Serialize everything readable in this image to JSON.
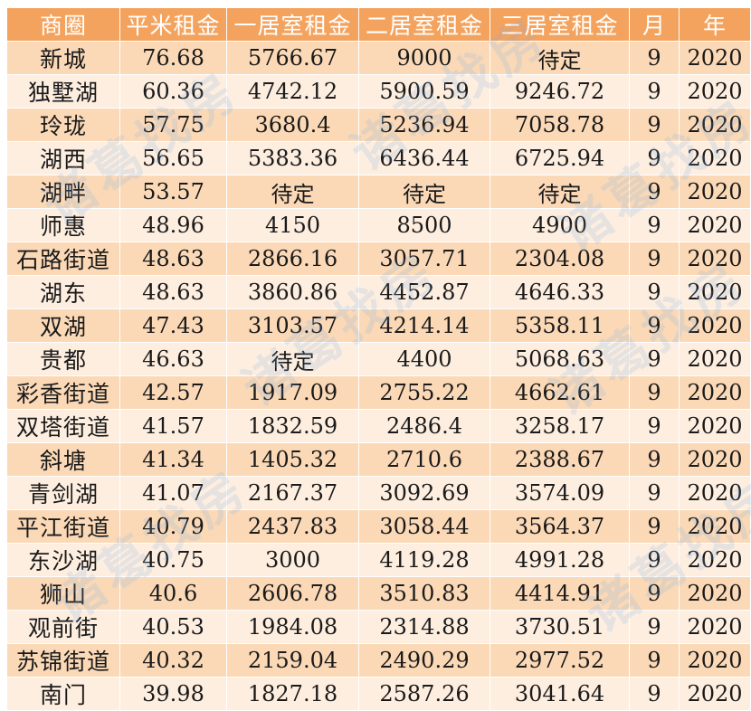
{
  "headers": [
    "商圈",
    "平米租金",
    "一居室租金",
    "二居室租金",
    "三居室租金",
    "月",
    "年"
  ],
  "rows": [
    [
      "新城",
      "76.68",
      "5766.67",
      "9000",
      "待定",
      "9",
      "2020"
    ],
    [
      "独墅湖",
      "60.36",
      "4742.12",
      "5900.59",
      "9246.72",
      "9",
      "2020"
    ],
    [
      "玲珑",
      "57.75",
      "3680.4",
      "5236.94",
      "7058.78",
      "9",
      "2020"
    ],
    [
      "湖西",
      "56.65",
      "5383.36",
      "6436.44",
      "6725.94",
      "9",
      "2020"
    ],
    [
      "湖畔",
      "53.57",
      "待定",
      "待定",
      "待定",
      "9",
      "2020"
    ],
    [
      "师惠",
      "48.96",
      "4150",
      "8500",
      "4900",
      "9",
      "2020"
    ],
    [
      "石路街道",
      "48.63",
      "2866.16",
      "3057.71",
      "2304.08",
      "9",
      "2020"
    ],
    [
      "湖东",
      "48.63",
      "3860.86",
      "4452.87",
      "4646.33",
      "9",
      "2020"
    ],
    [
      "双湖",
      "47.43",
      "3103.57",
      "4214.14",
      "5358.11",
      "9",
      "2020"
    ],
    [
      "贵都",
      "46.63",
      "待定",
      "4400",
      "5068.63",
      "9",
      "2020"
    ],
    [
      "彩香街道",
      "42.57",
      "1917.09",
      "2755.22",
      "4662.61",
      "9",
      "2020"
    ],
    [
      "双塔街道",
      "41.57",
      "1832.59",
      "2486.4",
      "3258.17",
      "9",
      "2020"
    ],
    [
      "斜塘",
      "41.34",
      "1405.32",
      "2710.6",
      "2388.67",
      "9",
      "2020"
    ],
    [
      "青剑湖",
      "41.07",
      "2167.37",
      "3092.69",
      "3574.09",
      "9",
      "2020"
    ],
    [
      "平江街道",
      "40.79",
      "2437.83",
      "3058.44",
      "3564.37",
      "9",
      "2020"
    ],
    [
      "东沙湖",
      "40.75",
      "3000",
      "4119.28",
      "4991.28",
      "9",
      "2020"
    ],
    [
      "狮山",
      "40.6",
      "2606.78",
      "3510.83",
      "4414.91",
      "9",
      "2020"
    ],
    [
      "观前街",
      "40.53",
      "1984.08",
      "2314.88",
      "3730.51",
      "9",
      "2020"
    ],
    [
      "苏锦街道",
      "40.32",
      "2159.04",
      "2490.29",
      "2977.52",
      "9",
      "2020"
    ],
    [
      "南门",
      "39.98",
      "1827.18",
      "2587.26",
      "3041.64",
      "9",
      "2020"
    ]
  ],
  "watermark": "诸葛找房",
  "colors": {
    "header_bg": "#f4a35e",
    "header_text": "#ffffff",
    "row_odd": "#fbd9b7",
    "row_even": "#fdeee0",
    "cell_text": "#1a1a1a"
  }
}
